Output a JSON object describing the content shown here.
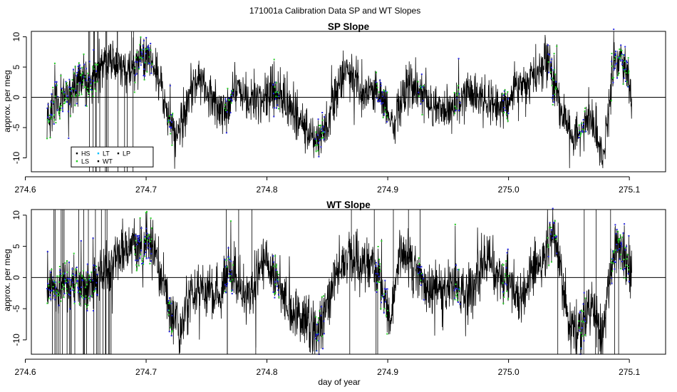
{
  "figure": {
    "title": "171001a   Calibration Data SP and WT Slopes",
    "xlabel": "day of year"
  },
  "chart_data": [
    {
      "type": "line",
      "title": "SP Slope",
      "ylabel": "approx. per meg",
      "xlim": [
        274.605,
        275.13
      ],
      "ylim": [
        -12.3,
        10.9
      ],
      "xticks": [
        274.6,
        274.7,
        274.8,
        274.9,
        275.0,
        275.1
      ],
      "xtick_labels": [
        "274.6",
        "274.7",
        "274.8",
        "274.9",
        "275.0",
        "275.1"
      ],
      "yticks": [
        -10,
        -5,
        0,
        5,
        10
      ],
      "ytick_labels": [
        "-10",
        "-5",
        "0",
        "5",
        "10"
      ],
      "hline": 0,
      "trend": {
        "x": [
          274.618,
          274.625,
          274.635,
          274.645,
          274.655,
          274.665,
          274.675,
          274.685,
          274.695,
          274.705,
          274.712,
          274.718,
          274.724,
          274.73,
          274.738,
          274.745,
          274.752,
          274.76,
          274.768,
          274.775,
          274.785,
          274.795,
          274.803,
          274.812,
          274.822,
          274.832,
          274.842,
          274.85,
          274.857,
          274.865,
          274.873,
          274.882,
          274.89,
          274.898,
          274.905,
          274.915,
          274.925,
          274.935,
          274.945,
          274.955,
          274.965,
          274.975,
          274.985,
          274.995,
          275.005,
          275.015,
          275.025,
          275.033,
          275.038,
          275.045,
          275.052,
          275.06,
          275.068,
          275.073,
          275.078,
          275.082,
          275.087,
          275.092,
          275.097,
          275.102
        ],
        "y": [
          -3.5,
          -1.0,
          0.5,
          2.0,
          3.0,
          5.5,
          6.0,
          4.0,
          6.5,
          6.0,
          2.0,
          -3.0,
          -7.0,
          -4.0,
          1.5,
          3.5,
          0.5,
          -2.0,
          -1.5,
          2.0,
          0.0,
          -1.0,
          1.5,
          0.0,
          -3.0,
          -5.0,
          -7.0,
          -5.0,
          0.0,
          5.0,
          3.0,
          1.0,
          2.0,
          -2.0,
          -5.5,
          2.0,
          1.5,
          -1.0,
          -2.0,
          -1.5,
          0.5,
          0.0,
          -1.0,
          -2.5,
          1.0,
          3.0,
          4.0,
          6.5,
          2.0,
          -3.5,
          -6.0,
          -5.0,
          -3.5,
          -6.0,
          -10.0,
          -4.0,
          6.0,
          7.0,
          4.0,
          0.5
        ],
        "noise_amplitude": 2.3
      },
      "legend": {
        "position": "bottom-left",
        "entries": [
          {
            "label": "HS",
            "color": "#000000"
          },
          {
            "label": "LT",
            "color": "#00bfff"
          },
          {
            "label": "LP",
            "color": "#000000"
          },
          {
            "label": "LS",
            "color": "#22cc22"
          },
          {
            "label": "WT",
            "color": "#000000"
          }
        ]
      },
      "grid": false
    },
    {
      "type": "line",
      "title": "WT Slope",
      "ylabel": "approx. per meg",
      "xlim": [
        274.605,
        275.13
      ],
      "ylim": [
        -12.3,
        10.9
      ],
      "xticks": [
        274.6,
        274.7,
        274.8,
        274.9,
        275.0,
        275.1
      ],
      "xtick_labels": [
        "274.6",
        "274.7",
        "274.8",
        "274.9",
        "275.0",
        "275.1"
      ],
      "yticks": [
        -10,
        -5,
        0,
        5,
        10
      ],
      "ytick_labels": [
        "-10",
        "-5",
        "0",
        "5",
        "10"
      ],
      "hline": 0,
      "trend": {
        "x": [
          274.618,
          274.628,
          274.64,
          274.652,
          274.665,
          274.68,
          274.695,
          274.705,
          274.712,
          274.72,
          274.728,
          274.738,
          274.75,
          274.76,
          274.768,
          274.778,
          274.788,
          274.798,
          274.808,
          274.818,
          274.83,
          274.842,
          274.85,
          274.858,
          274.868,
          274.878,
          274.888,
          274.895,
          274.902,
          274.91,
          274.92,
          274.93,
          274.94,
          274.95,
          274.96,
          274.97,
          274.98,
          274.99,
          275.0,
          275.01,
          275.02,
          275.03,
          275.036,
          275.042,
          275.05,
          275.058,
          275.066,
          275.072,
          275.078,
          275.084,
          275.09,
          275.096,
          275.102
        ],
        "y": [
          -0.5,
          -2.0,
          -1.0,
          -1.5,
          1.0,
          3.5,
          5.5,
          5.0,
          1.0,
          -5.0,
          -8.0,
          -2.5,
          -1.5,
          -3.0,
          1.5,
          -2.0,
          -2.5,
          3.0,
          0.0,
          -5.0,
          -6.0,
          -9.0,
          -4.0,
          1.0,
          3.5,
          1.5,
          2.5,
          -1.0,
          -6.5,
          4.0,
          2.5,
          -1.0,
          -2.0,
          -1.0,
          -1.5,
          -3.0,
          4.0,
          1.0,
          -1.0,
          -4.5,
          2.0,
          3.0,
          7.5,
          1.5,
          -7.5,
          -9.0,
          -4.0,
          -6.0,
          -9.0,
          0.0,
          5.0,
          4.0,
          1.0
        ],
        "noise_amplitude": 2.6
      },
      "grid": false
    }
  ]
}
